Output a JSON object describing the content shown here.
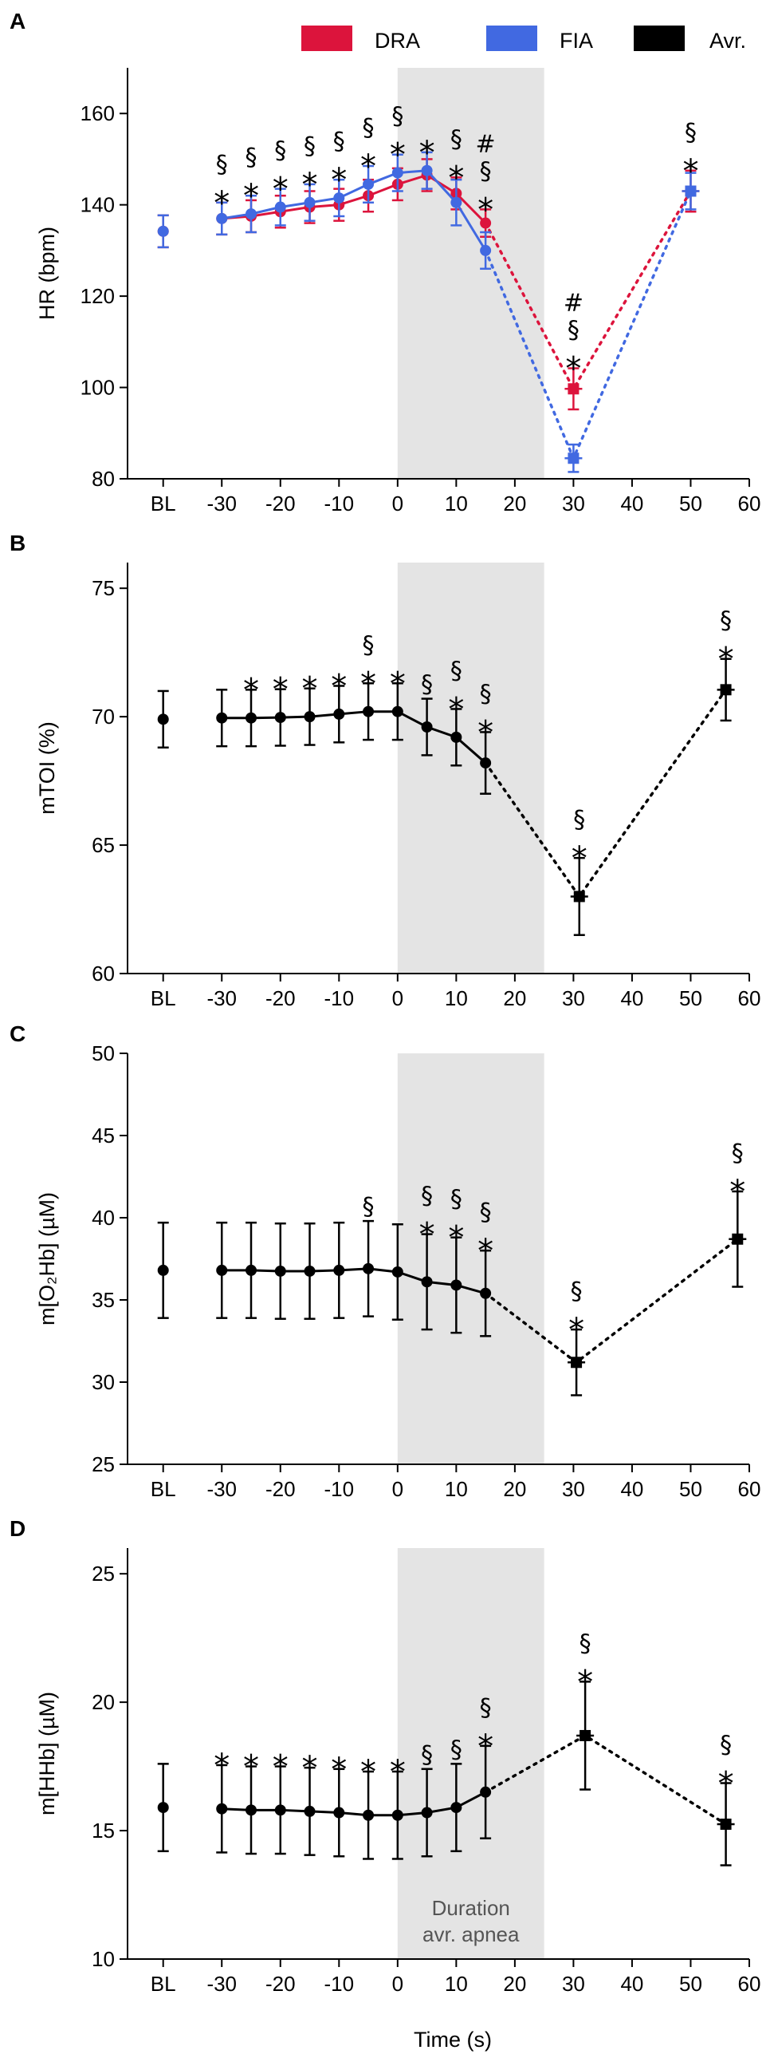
{
  "figure": {
    "xaxis_title": "Time (s)",
    "shade_label_line1": "Duration",
    "shade_label_line2": "avr. apnea",
    "legend": [
      {
        "label": "DRA",
        "color": "#dc143c"
      },
      {
        "label": "FIA",
        "color": "#4169e1"
      },
      {
        "label": "Avr.",
        "color": "#000000"
      }
    ]
  },
  "chart_data": [
    {
      "panel": "A",
      "type": "line",
      "ylabel": "HR (bpm)",
      "ylim": [
        80,
        170
      ],
      "yticks": [
        80,
        100,
        120,
        140,
        160
      ],
      "xlim": [
        -42,
        60
      ],
      "xticks": [
        -30,
        -20,
        -10,
        0,
        10,
        20,
        30,
        40,
        50,
        60
      ],
      "xtick_labels": [
        "BL",
        "-30",
        "-20",
        "-10",
        "0",
        "10",
        "20",
        "30",
        "40",
        "50",
        "60"
      ],
      "baseline_x": -40,
      "shade": [
        0,
        25
      ],
      "series": [
        {
          "name": "DRA",
          "color": "#dc143c",
          "solid": [
            [
              -40,
              134.2,
              3.5
            ],
            [
              -30,
              137,
              3.5
            ],
            [
              -25,
              137.5,
              3.5
            ],
            [
              -20,
              138.5,
              3.5
            ],
            [
              -15,
              139.5,
              3.5
            ],
            [
              -10,
              140,
              3.5
            ],
            [
              -5,
              142,
              3.5
            ],
            [
              0,
              144.5,
              3.5
            ],
            [
              5,
              146.5,
              3.5
            ],
            [
              10,
              142.5,
              3.5
            ],
            [
              15,
              136,
              3
            ]
          ],
          "dotted": [
            [
              15,
              136,
              3
            ],
            [
              30,
              99.7,
              4.5
            ],
            [
              50,
              143,
              4.5
            ]
          ]
        },
        {
          "name": "FIA",
          "color": "#4169e1",
          "solid": [
            [
              -40,
              134.2,
              3.5
            ],
            [
              -30,
              137,
              3.5
            ],
            [
              -25,
              138,
              4
            ],
            [
              -20,
              139.5,
              4
            ],
            [
              -15,
              140.5,
              4
            ],
            [
              -10,
              141.5,
              4
            ],
            [
              -5,
              144.5,
              4
            ],
            [
              0,
              147,
              4
            ],
            [
              5,
              147.5,
              4
            ],
            [
              10,
              140.5,
              5
            ],
            [
              15,
              130,
              4
            ]
          ],
          "dotted": [
            [
              15,
              130,
              4
            ],
            [
              30,
              84.5,
              3
            ],
            [
              50,
              143,
              4
            ]
          ]
        }
      ],
      "annotations": [
        {
          "x": -30,
          "sym": [
            "§",
            "*"
          ]
        },
        {
          "x": -25,
          "sym": [
            "§",
            "*"
          ]
        },
        {
          "x": -20,
          "sym": [
            "§",
            "*"
          ]
        },
        {
          "x": -15,
          "sym": [
            "§",
            "*"
          ]
        },
        {
          "x": -10,
          "sym": [
            "§",
            "*"
          ]
        },
        {
          "x": -5,
          "sym": [
            "§",
            "*"
          ]
        },
        {
          "x": 0,
          "sym": [
            "§",
            "*"
          ]
        },
        {
          "x": 5,
          "sym": [
            "*"
          ]
        },
        {
          "x": 10,
          "sym": [
            "§",
            "*"
          ]
        },
        {
          "x": 15,
          "sym": [
            "#",
            "§",
            "*"
          ]
        },
        {
          "x": 30,
          "sym": [
            "#",
            "§",
            "*"
          ]
        },
        {
          "x": 50,
          "sym": [
            "§",
            "*"
          ]
        }
      ]
    },
    {
      "panel": "B",
      "type": "line",
      "ylabel": "mTOI (%)",
      "ylim": [
        60,
        76
      ],
      "yticks": [
        60,
        65,
        70,
        75
      ],
      "xlim": [
        -42,
        60
      ],
      "xticks": [
        -30,
        -20,
        -10,
        0,
        10,
        20,
        30,
        40,
        50,
        60
      ],
      "xtick_labels": [
        "BL",
        "-30",
        "-20",
        "-10",
        "0",
        "10",
        "20",
        "30",
        "40",
        "50",
        "60"
      ],
      "baseline_x": -40,
      "shade": [
        0,
        25
      ],
      "series": [
        {
          "name": "Avr.",
          "color": "#000000",
          "solid": [
            [
              -40,
              69.9,
              1.1
            ],
            [
              -30,
              69.95,
              1.1
            ],
            [
              -25,
              69.95,
              1.1
            ],
            [
              -20,
              69.97,
              1.1
            ],
            [
              -15,
              70,
              1.1
            ],
            [
              -10,
              70.1,
              1.1
            ],
            [
              -5,
              70.2,
              1.1
            ],
            [
              0,
              70.2,
              1.1
            ],
            [
              5,
              69.6,
              1.1
            ],
            [
              10,
              69.2,
              1.1
            ],
            [
              15,
              68.2,
              1.2
            ]
          ],
          "dotted": [
            [
              15,
              68.2,
              1.2
            ],
            [
              31,
              63,
              1.5
            ],
            [
              56,
              71.05,
              1.2
            ]
          ]
        }
      ],
      "annotations": [
        {
          "x": -25,
          "sym": [
            "*"
          ]
        },
        {
          "x": -20,
          "sym": [
            "*"
          ]
        },
        {
          "x": -15,
          "sym": [
            "*"
          ]
        },
        {
          "x": -10,
          "sym": [
            "*"
          ]
        },
        {
          "x": -5,
          "sym": [
            "§",
            "*"
          ]
        },
        {
          "x": 0,
          "sym": [
            "*"
          ]
        },
        {
          "x": 5,
          "sym": [
            "§"
          ]
        },
        {
          "x": 10,
          "sym": [
            "§",
            "*"
          ]
        },
        {
          "x": 15,
          "sym": [
            "§",
            "*"
          ]
        },
        {
          "x": 31,
          "sym": [
            "§",
            "*"
          ]
        },
        {
          "x": 56,
          "sym": [
            "§",
            "*"
          ]
        }
      ]
    },
    {
      "panel": "C",
      "type": "line",
      "ylabel": "m[O₂Hb] (µM)",
      "ylim": [
        25,
        50
      ],
      "yticks": [
        25,
        30,
        35,
        40,
        45,
        50
      ],
      "xlim": [
        -42,
        60
      ],
      "xticks": [
        -30,
        -20,
        -10,
        0,
        10,
        20,
        30,
        40,
        50,
        60
      ],
      "xtick_labels": [
        "BL",
        "-30",
        "-20",
        "-10",
        "0",
        "10",
        "20",
        "30",
        "40",
        "50",
        "60"
      ],
      "baseline_x": -40,
      "shade": [
        0,
        25
      ],
      "series": [
        {
          "name": "Avr.",
          "color": "#000000",
          "solid": [
            [
              -40,
              36.8,
              2.9
            ],
            [
              -30,
              36.8,
              2.9
            ],
            [
              -25,
              36.8,
              2.9
            ],
            [
              -20,
              36.75,
              2.9
            ],
            [
              -15,
              36.75,
              2.9
            ],
            [
              -10,
              36.8,
              2.9
            ],
            [
              -5,
              36.9,
              2.9
            ],
            [
              0,
              36.7,
              2.9
            ],
            [
              5,
              36.1,
              2.9
            ],
            [
              10,
              35.9,
              2.9
            ],
            [
              15,
              35.4,
              2.6
            ]
          ],
          "dotted": [
            [
              15,
              35.4,
              2.6
            ],
            [
              30.5,
              31.2,
              2
            ],
            [
              58,
              38.7,
              2.9
            ]
          ]
        }
      ],
      "annotations": [
        {
          "x": -5,
          "sym": [
            "§"
          ]
        },
        {
          "x": 5,
          "sym": [
            "§",
            "*"
          ]
        },
        {
          "x": 10,
          "sym": [
            "§",
            "*"
          ]
        },
        {
          "x": 15,
          "sym": [
            "§",
            "*"
          ]
        },
        {
          "x": 30.5,
          "sym": [
            "§",
            "*"
          ]
        },
        {
          "x": 58,
          "sym": [
            "§",
            "*"
          ]
        }
      ]
    },
    {
      "panel": "D",
      "type": "line",
      "ylabel": "m[HHb] (µM)",
      "ylim": [
        10,
        26
      ],
      "yticks": [
        10,
        15,
        20,
        25
      ],
      "xlim": [
        -42,
        60
      ],
      "xticks": [
        -30,
        -20,
        -10,
        0,
        10,
        20,
        30,
        40,
        50,
        60
      ],
      "xtick_labels": [
        "BL",
        "-30",
        "-20",
        "-10",
        "0",
        "10",
        "20",
        "30",
        "40",
        "50",
        "60"
      ],
      "baseline_x": -40,
      "shade": [
        0,
        25
      ],
      "series": [
        {
          "name": "Avr.",
          "color": "#000000",
          "solid": [
            [
              -40,
              15.9,
              1.7
            ],
            [
              -30,
              15.85,
              1.7
            ],
            [
              -25,
              15.8,
              1.7
            ],
            [
              -20,
              15.8,
              1.7
            ],
            [
              -15,
              15.75,
              1.7
            ],
            [
              -10,
              15.7,
              1.7
            ],
            [
              -5,
              15.6,
              1.7
            ],
            [
              0,
              15.6,
              1.7
            ],
            [
              5,
              15.7,
              1.7
            ],
            [
              10,
              15.9,
              1.7
            ],
            [
              15,
              16.5,
              1.8
            ]
          ],
          "dotted": [
            [
              15,
              16.5,
              1.8
            ],
            [
              32,
              18.7,
              2.1
            ],
            [
              56,
              15.25,
              1.6
            ]
          ]
        }
      ],
      "annotations": [
        {
          "x": -30,
          "sym": [
            "*"
          ]
        },
        {
          "x": -25,
          "sym": [
            "*"
          ]
        },
        {
          "x": -20,
          "sym": [
            "*"
          ]
        },
        {
          "x": -15,
          "sym": [
            "*"
          ]
        },
        {
          "x": -10,
          "sym": [
            "*"
          ]
        },
        {
          "x": -5,
          "sym": [
            "*"
          ]
        },
        {
          "x": 0,
          "sym": [
            "*"
          ]
        },
        {
          "x": 5,
          "sym": [
            "§"
          ]
        },
        {
          "x": 10,
          "sym": [
            "§"
          ]
        },
        {
          "x": 15,
          "sym": [
            "§",
            "*"
          ]
        },
        {
          "x": 32,
          "sym": [
            "§",
            "*"
          ]
        },
        {
          "x": 56,
          "sym": [
            "§",
            "*"
          ]
        }
      ]
    }
  ]
}
